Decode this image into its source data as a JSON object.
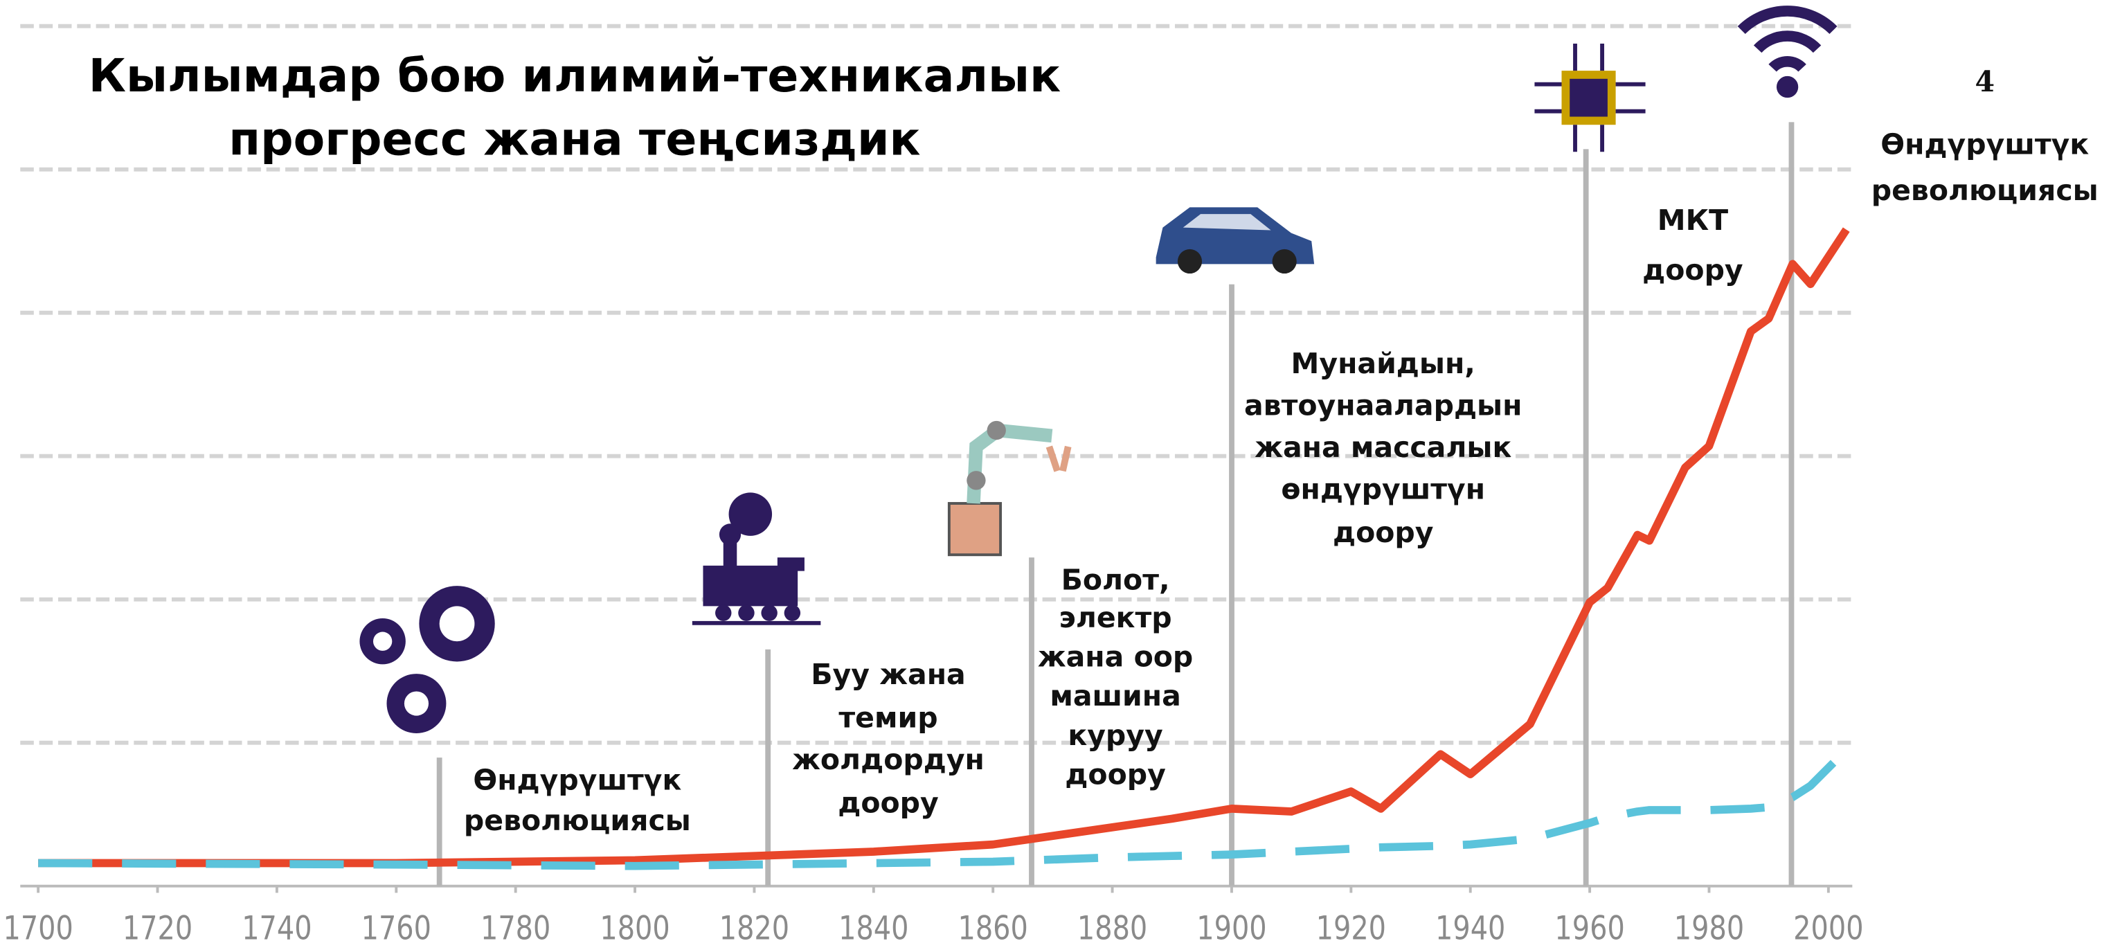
{
  "chart_data": {
    "type": "line",
    "title": [
      "Кылымдар бою илимий-техникалык",
      "прогресс жана теңсиздик"
    ],
    "x": [
      1700,
      1760,
      1800,
      1820,
      1840,
      1860,
      1880,
      1890,
      1900,
      1910,
      1920,
      1925,
      1935,
      1940,
      1950,
      1960,
      1963,
      1968,
      1970,
      1976,
      1980,
      1987,
      1990,
      1994,
      1997,
      2003
    ],
    "series": [
      {
        "color": "#e8462a",
        "dashed": false,
        "values": [
          0.16,
          0.16,
          0.18,
          0.21,
          0.24,
          0.29,
          0.41,
          0.47,
          0.54,
          0.52,
          0.66,
          0.54,
          0.92,
          0.78,
          1.13,
          1.98,
          2.08,
          2.45,
          2.41,
          2.92,
          3.07,
          3.87,
          3.96,
          4.34,
          4.2,
          4.58
        ]
      },
      {
        "color": "#5bc3db",
        "dashed": true,
        "values": [
          0.16,
          0.15,
          0.14,
          0.15,
          0.16,
          0.17,
          0.2,
          0.21,
          0.22,
          0.24,
          0.26,
          0.27,
          0.28,
          0.29,
          0.33,
          0.44,
          0.48,
          0.52,
          0.53,
          0.53,
          0.53,
          0.54,
          0.55,
          0.62,
          0.7,
          0.95
        ]
      }
    ],
    "xlim": [
      1697,
      2004
    ],
    "xticks": [
      1700,
      1720,
      1740,
      1760,
      1780,
      1800,
      1820,
      1840,
      1860,
      1880,
      1900,
      1920,
      1940,
      1960,
      1980,
      2000
    ],
    "ylim": [
      0,
      6
    ],
    "yticks": [
      1,
      2,
      3,
      4,
      5,
      6
    ],
    "grid": true,
    "annotations": [
      [
        "Өндүрүштүк",
        "революциясы"
      ],
      [
        "Буу жана",
        "темир",
        "жолдордун",
        "доору"
      ],
      [
        "Болот,",
        "электр",
        "жана оор",
        "машина",
        "куруу",
        "доору"
      ],
      [
        "Мунайдын,",
        "автоунаалардын",
        "жана массалык",
        "өндүрүштүн",
        "доору"
      ],
      [
        "МКТ",
        "доору"
      ],
      [
        "4",
        "Өндүрүштүк",
        "революциясы"
      ]
    ]
  }
}
